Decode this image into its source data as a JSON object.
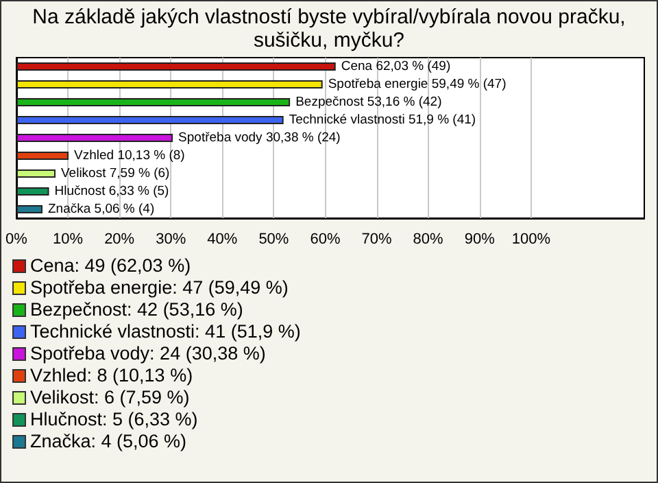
{
  "chart_data": {
    "type": "bar",
    "orientation": "horizontal",
    "title": "Na základě jakých vlastností byste vybíral/vybírala novou pračku, sušičku, myčku?",
    "categories": [
      null,
      null,
      null,
      null,
      null,
      null,
      null,
      null,
      null
    ],
    "values": [
      62.03,
      59.49,
      53.16,
      51.9,
      30.38,
      10.13,
      7.59,
      6.33,
      5.06
    ],
    "colors": [
      "#c8140c",
      "#f5e400",
      "#18b418",
      "#3c64f0",
      "#c814dc",
      "#e04010",
      "#c8f878",
      "#109458",
      "#1c7890"
    ],
    "value_labels": [
      "Cena 62,03 % (49)",
      "Spotřeba energie 59,49 % (47)",
      "Bezpečnost 53,16 % (42)",
      "Technické vlastnosti 51,9 % (41)",
      "Spotřeba vody 30,38 % (24)",
      "Vzhled 10,13 % (8)",
      "Velikost 7,59 % (6)",
      "Hlučnost 6,33 % (5)",
      "Značka 5,06 % (4)"
    ],
    "xlim": [
      0,
      122
    ],
    "xticks": [
      {
        "value": 0,
        "label": "0%"
      },
      {
        "value": 10,
        "label": "10%"
      },
      {
        "value": 20,
        "label": "20%"
      },
      {
        "value": 30,
        "label": "30%"
      },
      {
        "value": 40,
        "label": "40%"
      },
      {
        "value": 50,
        "label": "50%"
      },
      {
        "value": 60,
        "label": "60%"
      },
      {
        "value": 70,
        "label": "70%"
      },
      {
        "value": 80,
        "label": "80%"
      },
      {
        "value": 90,
        "label": "90%"
      },
      {
        "value": 100,
        "label": "100%"
      }
    ],
    "grid": "x",
    "annotations": [
      "Cena: 49 (62,03 %)",
      "Spotřeba energie: 47 (59,49 %)",
      "Bezpečnost: 42 (53,16 %)",
      "Technické vlastnosti: 41 (51,9 %)",
      "Spotřeba vody: 24 (30,38 %)",
      "Vzhled: 8 (10,13 %)",
      "Velikost: 6 (7,59 %)",
      "Hlučnost: 5 (6,33 %)",
      "Značka: 4 (5,06 %)"
    ]
  }
}
